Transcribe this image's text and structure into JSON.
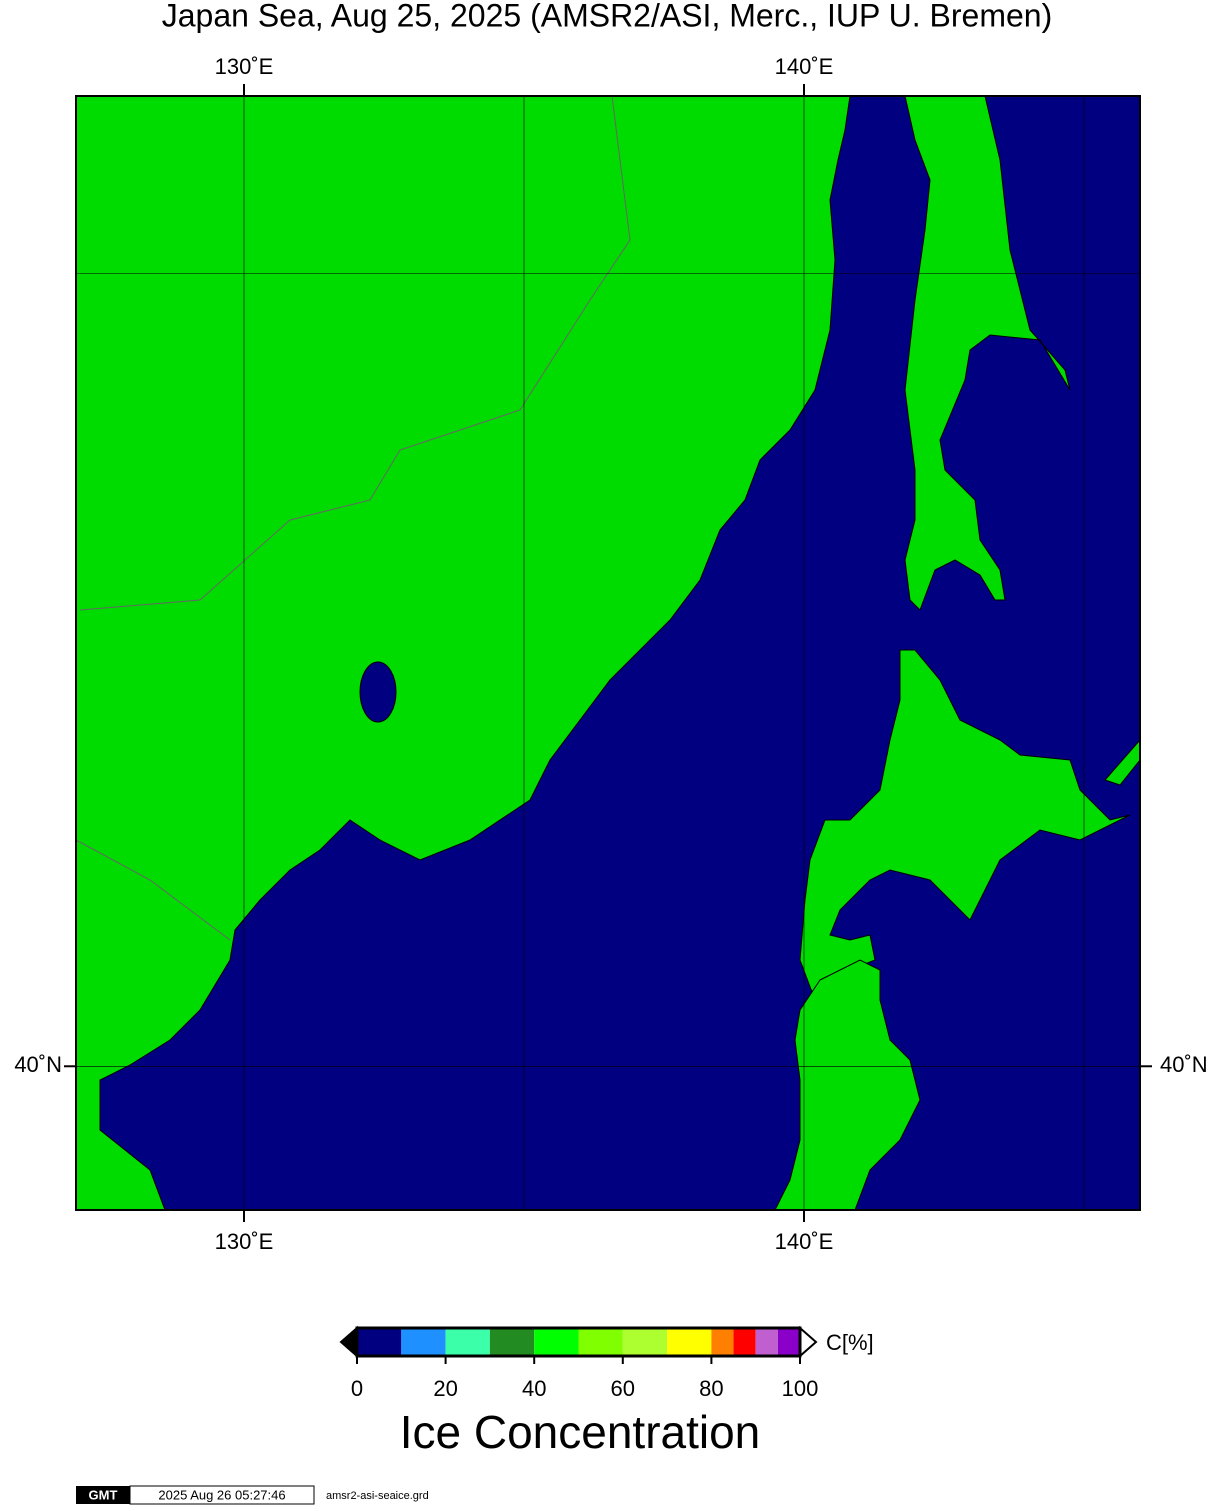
{
  "chart_data": {
    "type": "map",
    "title": "Japan Sea, Aug 25, 2025 (AMSR2/ASI, Merc., IUP U. Bremen)",
    "projection": "mercator",
    "xlim": [
      127,
      146
    ],
    "ylim": [
      38,
      52
    ],
    "xticks": [
      {
        "value": 130,
        "label": "130˚E"
      },
      {
        "value": 140,
        "label": "140˚E"
      }
    ],
    "yticks": [
      {
        "value": 40,
        "label": "40˚N"
      }
    ],
    "xgrid": [
      130,
      135,
      140,
      145
    ],
    "ygrid": [
      40,
      50
    ],
    "land_color": "#00dc00",
    "sea_color": "#000080",
    "colorbar": {
      "title": "Ice Concentration",
      "unit_label": "C[%]",
      "bounds": [
        0,
        10,
        20,
        30,
        40,
        50,
        60,
        70,
        80,
        85,
        90,
        95,
        100
      ],
      "colors": [
        "#000080",
        "#1e90ff",
        "#3cffaa",
        "#228b22",
        "#00ff00",
        "#7fff00",
        "#adff2f",
        "#ffff00",
        "#ff8000",
        "#ff0000",
        "#c060d0",
        "#8a00c8"
      ],
      "ticks": [
        0,
        20,
        40,
        60,
        80,
        100
      ]
    },
    "footer": {
      "logo": "GMT",
      "timestamp": "2025 Aug 26 05:27:46",
      "file": "amsr2-asi-seaice.grd"
    }
  }
}
